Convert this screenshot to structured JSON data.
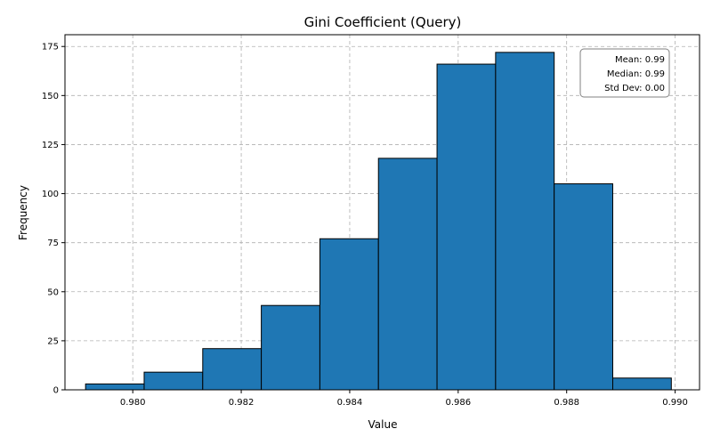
{
  "chart_data": {
    "type": "bar",
    "title": "Gini Coefficient (Query)",
    "xlabel": "Value",
    "ylabel": "Frequency",
    "bin_edges": [
      0.97913,
      0.98021,
      0.98129,
      0.98237,
      0.98345,
      0.98453,
      0.98561,
      0.98669,
      0.98777,
      0.98885,
      0.98993
    ],
    "values": [
      3,
      9,
      21,
      43,
      77,
      118,
      166,
      172,
      105,
      6
    ],
    "xlim": [
      0.97875,
      0.99045
    ],
    "ylim": [
      0,
      181
    ],
    "xticks": [
      0.98,
      0.982,
      0.984,
      0.986,
      0.988,
      0.99
    ],
    "xtick_labels": [
      "0.980",
      "0.982",
      "0.984",
      "0.986",
      "0.988",
      "0.990"
    ],
    "yticks": [
      0,
      25,
      50,
      75,
      100,
      125,
      150,
      175
    ],
    "ytick_labels": [
      "0",
      "25",
      "50",
      "75",
      "100",
      "125",
      "150",
      "175"
    ],
    "grid": true,
    "bar_color": "#1f77b4",
    "stats": [
      "Mean: 0.99",
      "Median: 0.99",
      "Std Dev: 0.00"
    ]
  }
}
